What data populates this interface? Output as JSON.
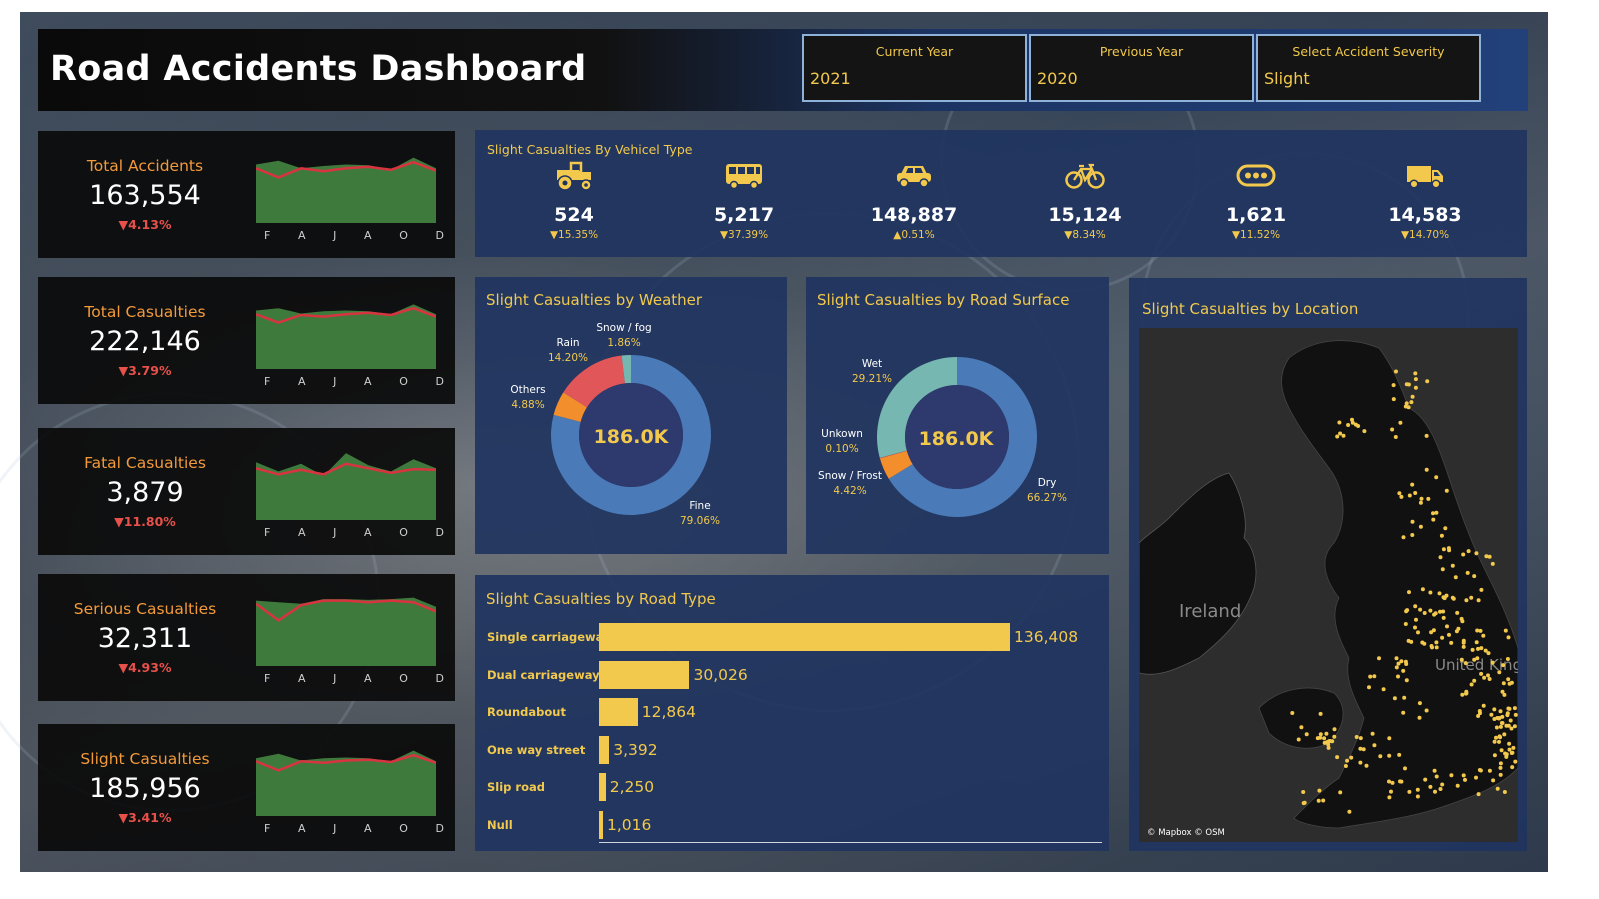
{
  "header": {
    "title": "Road Accidents Dashboard",
    "filters": [
      {
        "label": "Current Year",
        "value": "2021"
      },
      {
        "label": "Previous Year",
        "value": "2020"
      },
      {
        "label": "Select Accident Severity",
        "value": "Slight"
      }
    ]
  },
  "kpis": [
    {
      "title": "Total Accidents",
      "value": "163,554",
      "change": "▼4.13%",
      "trend_current": [
        0.72,
        0.6,
        0.72,
        0.68,
        0.72,
        0.74,
        0.7,
        0.8,
        0.69
      ],
      "trend_previous": [
        0.77,
        0.82,
        0.72,
        0.75,
        0.77,
        0.76,
        0.7,
        0.86,
        0.72
      ]
    },
    {
      "title": "Total Casualties",
      "value": "222,146",
      "change": "▼3.79%",
      "trend_current": [
        0.72,
        0.61,
        0.71,
        0.69,
        0.72,
        0.74,
        0.71,
        0.8,
        0.69
      ],
      "trend_previous": [
        0.77,
        0.8,
        0.73,
        0.76,
        0.77,
        0.76,
        0.72,
        0.85,
        0.72
      ]
    },
    {
      "title": "Fatal Casualties",
      "value": "3,879",
      "change": "▼11.80%",
      "trend_current": [
        0.68,
        0.6,
        0.66,
        0.6,
        0.74,
        0.68,
        0.62,
        0.67,
        0.66
      ],
      "trend_previous": [
        0.76,
        0.64,
        0.74,
        0.58,
        0.88,
        0.72,
        0.64,
        0.8,
        0.68
      ]
    },
    {
      "title": "Serious Casualties",
      "value": "32,311",
      "change": "▼4.93%",
      "trend_current": [
        0.82,
        0.6,
        0.8,
        0.86,
        0.86,
        0.84,
        0.86,
        0.84,
        0.72
      ],
      "trend_previous": [
        0.86,
        0.84,
        0.82,
        0.88,
        0.88,
        0.87,
        0.88,
        0.9,
        0.78
      ]
    },
    {
      "title": "Slight Casualties",
      "value": "185,956",
      "change": "▼3.41%",
      "trend_current": [
        0.72,
        0.6,
        0.72,
        0.7,
        0.73,
        0.74,
        0.71,
        0.8,
        0.7
      ],
      "trend_previous": [
        0.76,
        0.82,
        0.73,
        0.76,
        0.77,
        0.76,
        0.72,
        0.86,
        0.72
      ]
    }
  ],
  "kpi_months": [
    "F",
    "A",
    "J",
    "A",
    "O",
    "D"
  ],
  "vehicles": {
    "title": "Slight Casualties By Vehicel Type",
    "items": [
      {
        "icon": "tractor-icon",
        "value": "524",
        "change": "▼15.35%"
      },
      {
        "icon": "bus-icon",
        "value": "5,217",
        "change": "▼37.39%"
      },
      {
        "icon": "car-icon",
        "value": "148,887",
        "change": "▲0.51%"
      },
      {
        "icon": "bicycle-icon",
        "value": "15,124",
        "change": "▼8.34%"
      },
      {
        "icon": "other-vehicle-icon",
        "value": "1,621",
        "change": "▼11.52%"
      },
      {
        "icon": "van-icon",
        "value": "14,583",
        "change": "▼14.70%"
      }
    ]
  },
  "weather": {
    "title": "Slight Casualties by Weather",
    "center": "186.0K",
    "slices": [
      {
        "name": "Fine",
        "pct": "79.06%",
        "value": 79.06,
        "color": "#4a7ab8"
      },
      {
        "name": "Others",
        "pct": "4.88%",
        "value": 4.88,
        "color": "#f28e2b"
      },
      {
        "name": "Rain",
        "pct": "14.20%",
        "value": 14.2,
        "color": "#e15759"
      },
      {
        "name": "Snow / fog",
        "pct": "1.86%",
        "value": 1.86,
        "color": "#76b7b2"
      }
    ]
  },
  "surface": {
    "title": "Slight Casualties by Road Surface",
    "center": "186.0K",
    "slices": [
      {
        "name": "Dry",
        "pct": "66.27%",
        "value": 66.27,
        "color": "#4a7ab8"
      },
      {
        "name": "Snow / Frost",
        "pct": "4.42%",
        "value": 4.42,
        "color": "#f28e2b"
      },
      {
        "name": "Unkown",
        "pct": "0.10%",
        "value": 0.1,
        "color": "#e15759"
      },
      {
        "name": "Wet",
        "pct": "29.21%",
        "value": 29.21,
        "color": "#76b7b2"
      }
    ]
  },
  "road_type": {
    "title": "Slight Casualties by Road Type",
    "rows": [
      {
        "label": "Single carriageway",
        "value": 136408,
        "display": "136,408"
      },
      {
        "label": "Dual carriageway",
        "value": 30026,
        "display": "30,026"
      },
      {
        "label": "Roundabout",
        "value": 12864,
        "display": "12,864"
      },
      {
        "label": "One way street",
        "value": 3392,
        "display": "3,392"
      },
      {
        "label": "Slip road",
        "value": 2250,
        "display": "2,250"
      },
      {
        "label": "Null",
        "value": 1016,
        "display": "1,016"
      }
    ]
  },
  "location": {
    "title": "Slight  Casualties by Location",
    "map_label_ireland": "Ireland",
    "map_label_uk": "United Kingdom",
    "credit": "© Mapbox © OSM"
  },
  "colors": {
    "accent_yellow": "#f2c94c",
    "accent_orange": "#f39a3a",
    "negative_red": "#e8504a",
    "area_green": "#3f7a3d",
    "line_red": "#d8343f",
    "panel_blue": "#1f3460"
  }
}
